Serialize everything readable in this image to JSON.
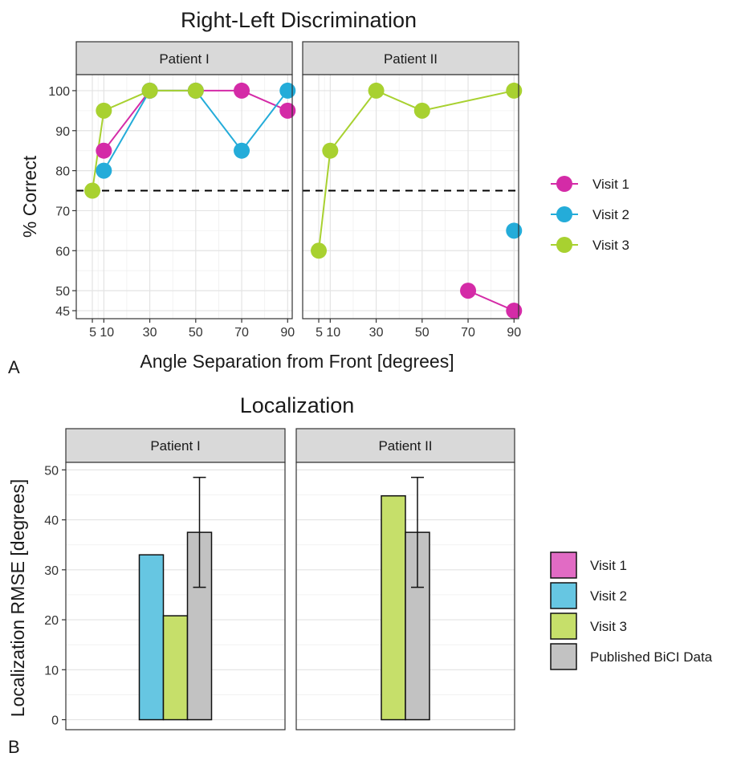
{
  "chart_data": [
    {
      "type": "line",
      "panel_label": "A",
      "title": "Right-Left Discrimination",
      "xlabel": "Angle Separation from Front [degrees]",
      "ylabel": "% Correct",
      "x_ticks": [
        5,
        10,
        30,
        50,
        70,
        90
      ],
      "x_tick_labels": [
        "5",
        "10",
        "30",
        "50",
        "70",
        "90"
      ],
      "y_ticks": [
        45,
        50,
        60,
        70,
        80,
        90,
        100
      ],
      "y_tick_labels": [
        "45",
        "50",
        "60",
        "70",
        "80",
        "90",
        "100"
      ],
      "xlim": [
        -2,
        92
      ],
      "ylim": [
        43,
        104
      ],
      "grid": true,
      "reference_line": 75,
      "legend_position": "right",
      "facets": [
        {
          "label": "Patient I",
          "series": [
            {
              "name": "Visit 1",
              "color": "#d42ba7",
              "points": [
                [
                  10,
                  85
                ],
                [
                  30,
                  100
                ],
                [
                  50,
                  100
                ],
                [
                  70,
                  100
                ],
                [
                  90,
                  95
                ]
              ]
            },
            {
              "name": "Visit 2",
              "color": "#24acd9",
              "points": [
                [
                  10,
                  80
                ],
                [
                  30,
                  100
                ],
                [
                  50,
                  100
                ],
                [
                  70,
                  85
                ],
                [
                  90,
                  100
                ]
              ]
            },
            {
              "name": "Visit 3",
              "color": "#a8d130",
              "points": [
                [
                  5,
                  75
                ],
                [
                  10,
                  95
                ],
                [
                  30,
                  100
                ],
                [
                  50,
                  100
                ]
              ]
            }
          ]
        },
        {
          "label": "Patient II",
          "series": [
            {
              "name": "Visit 1",
              "color": "#d42ba7",
              "points": [
                [
                  70,
                  50
                ],
                [
                  90,
                  45
                ]
              ]
            },
            {
              "name": "Visit 2",
              "color": "#24acd9",
              "points": [
                [
                  90,
                  65
                ]
              ]
            },
            {
              "name": "Visit 3",
              "color": "#a8d130",
              "points": [
                [
                  5,
                  60
                ],
                [
                  10,
                  85
                ],
                [
                  30,
                  100
                ],
                [
                  50,
                  95
                ],
                [
                  90,
                  100
                ]
              ]
            }
          ]
        }
      ]
    },
    {
      "type": "bar",
      "panel_label": "B",
      "title": "Localization",
      "xlabel": "",
      "ylabel": "Localization RMSE [degrees]",
      "y_ticks": [
        0,
        10,
        20,
        30,
        40,
        50
      ],
      "y_tick_labels": [
        "0",
        "10",
        "20",
        "30",
        "40",
        "50"
      ],
      "ylim": [
        -2,
        51.5
      ],
      "grid": true,
      "legend_position": "right",
      "legend": [
        {
          "name": "Visit 1",
          "color": "#e16bc4"
        },
        {
          "name": "Visit 2",
          "color": "#66c6e2"
        },
        {
          "name": "Visit 3",
          "color": "#c6df6a"
        },
        {
          "name": "Published BiCI Data",
          "color": "#c2c2c2"
        }
      ],
      "facets": [
        {
          "label": "Patient I",
          "bars": [
            {
              "name": "Visit 2",
              "value": 33,
              "color": "#66c6e2"
            },
            {
              "name": "Visit 3",
              "value": 20.8,
              "color": "#c6df6a"
            },
            {
              "name": "Published BiCI Data",
              "value": 37.5,
              "color": "#c2c2c2",
              "error_low": 26.5,
              "error_high": 48.5
            }
          ]
        },
        {
          "label": "Patient II",
          "bars": [
            {
              "name": "Visit 3",
              "value": 44.8,
              "color": "#c6df6a"
            },
            {
              "name": "Published BiCI Data",
              "value": 37.5,
              "color": "#c2c2c2",
              "error_low": 26.5,
              "error_high": 48.5
            }
          ]
        }
      ]
    }
  ]
}
